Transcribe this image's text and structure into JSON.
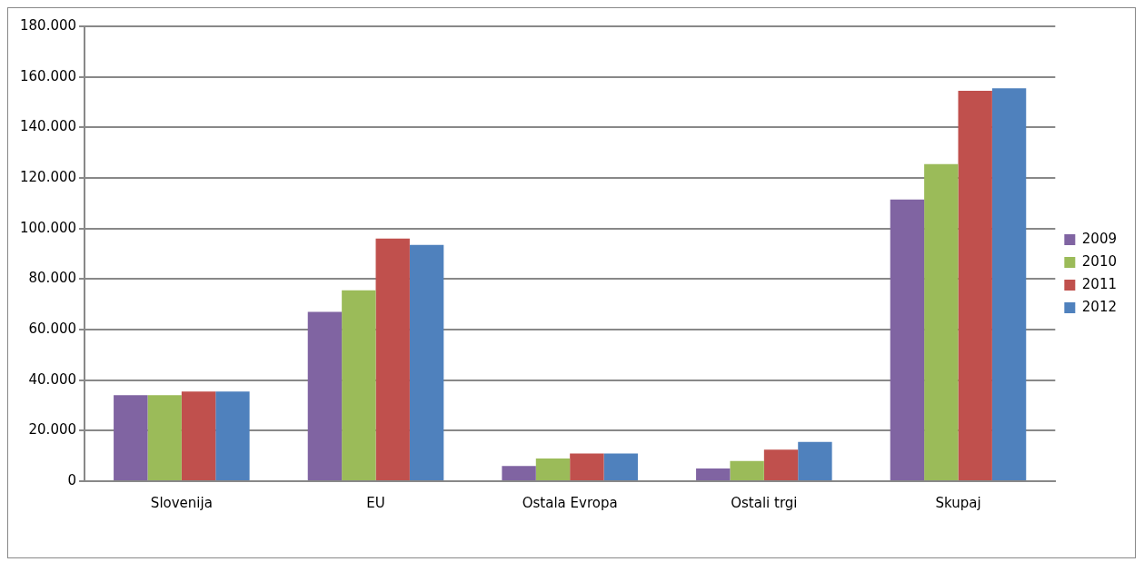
{
  "chart_data": {
    "type": "bar",
    "categories": [
      "Slovenija",
      "EU",
      "Ostala Evropa",
      "Ostali trgi",
      "Skupaj"
    ],
    "series": [
      {
        "name": "2009",
        "color": "#8064a2",
        "values": [
          34000,
          67000,
          6000,
          5000,
          111500
        ]
      },
      {
        "name": "2010",
        "color": "#9bbb59",
        "values": [
          34000,
          75500,
          9000,
          8000,
          125500
        ]
      },
      {
        "name": "2011",
        "color": "#c0504d",
        "values": [
          35500,
          96000,
          11000,
          12500,
          154500
        ]
      },
      {
        "name": "2012",
        "color": "#4f81bd",
        "values": [
          35500,
          93500,
          11000,
          15500,
          155500
        ]
      }
    ],
    "ylim": [
      0,
      180000
    ],
    "yticks": [
      {
        "value": 0,
        "label": "0"
      },
      {
        "value": 20000,
        "label": "20.000"
      },
      {
        "value": 40000,
        "label": "40.000"
      },
      {
        "value": 60000,
        "label": "60.000"
      },
      {
        "value": 80000,
        "label": "80.000"
      },
      {
        "value": 100000,
        "label": "100.000"
      },
      {
        "value": 120000,
        "label": "120.000"
      },
      {
        "value": 140000,
        "label": "140.000"
      },
      {
        "value": 160000,
        "label": "160.000"
      },
      {
        "value": 180000,
        "label": "180.000"
      }
    ],
    "grid": "y",
    "legend": "right"
  }
}
